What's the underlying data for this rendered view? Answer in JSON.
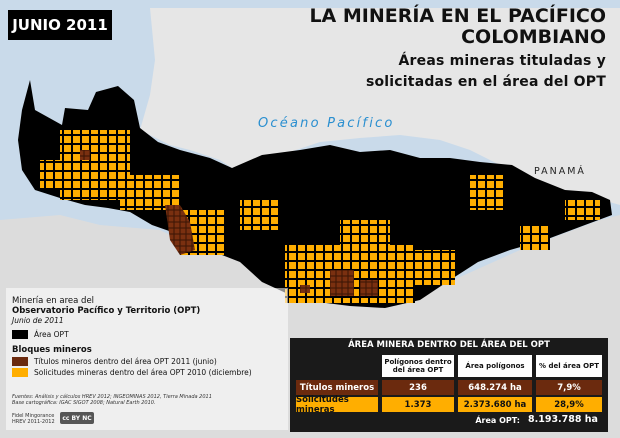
{
  "date_badge": "JUNIO 2011",
  "title": {
    "line1": "LA MINERÍA EN EL PACÍFICO",
    "line2": "COLOMBIANO",
    "sub1": "Áreas mineras  tituladas y",
    "sub2": "solicitadas en el área del OPT"
  },
  "map_labels": {
    "ocean": "Océano Pacífico",
    "country": "PANAMÁ"
  },
  "legend": {
    "title_line1": "Minería en area del",
    "title_line2": "Observatorio Pacífico y Territorio (OPT)",
    "subtitle": "Junio de 2011",
    "opt_area": "Área OPT",
    "blocks_heading": "Bloques mineros",
    "titled": "Títulos mineros dentro  del área OPT 2011 (junio)",
    "requested": "Solicitudes mineras dentro del área OPT 2010 (diciembre)"
  },
  "sources": {
    "line1": "Fuentes: Análisis y cálculos HREV 2012; INGEOMINAS 2012, Tierra Minada 2011",
    "line2": "Base cartográfica: IGAC SIGOT 2008; Natural Earth 2010."
  },
  "credit": {
    "line1": "Fidel Mingorance",
    "line2": "HREV 2011-2012",
    "cc": "cc BY NC"
  },
  "table": {
    "title": "ÁREA MINERA DENTRO DEL ÁREA DEL OPT",
    "headers": [
      "",
      "Polígonos dentro del área OPT",
      "Área polígonos",
      "% del área OPT"
    ],
    "rows": [
      [
        "Títulos mineros",
        "236",
        "648.274 ha",
        "7,9%"
      ],
      [
        "Solicitudes mineras",
        "1.373",
        "2.373.680 ha",
        "28,9%"
      ]
    ],
    "total_label": "Área  OPT:",
    "total_value": "8.193.788 ha"
  },
  "colors": {
    "sea": "#c9daea",
    "land": "#e6e6e6",
    "opt_area": "#000000",
    "titled": "#6b2a0e",
    "requested": "#ffae00",
    "ocean_label": "#2a8fd0"
  }
}
